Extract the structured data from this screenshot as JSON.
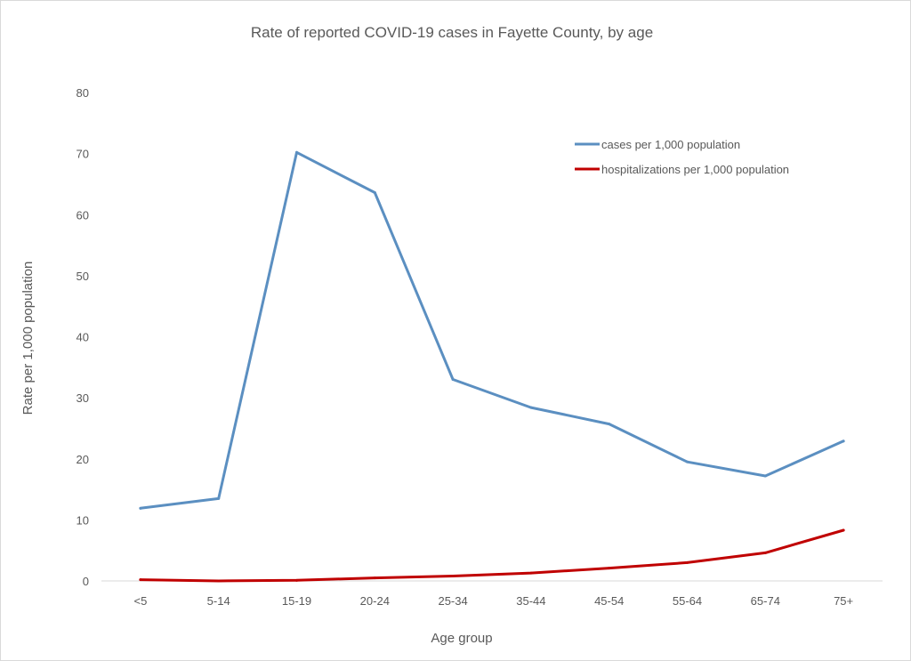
{
  "chart_data": {
    "type": "line",
    "title": "Rate of reported COVID-19 cases in Fayette County, by age",
    "xlabel": "Age group",
    "ylabel": "Rate per 1,000 population",
    "ylim": [
      0,
      80
    ],
    "yticks": [
      0,
      10,
      20,
      30,
      40,
      50,
      60,
      70,
      80
    ],
    "grid": false,
    "legend_position": "top-right",
    "categories": [
      "<5",
      "5-14",
      "15-19",
      "20-24",
      "25-34",
      "35-44",
      "45-54",
      "55-64",
      "65-74",
      "75+"
    ],
    "series": [
      {
        "name": "cases per 1,000 population",
        "color": "#5b8fc1",
        "values": [
          11.9,
          13.5,
          70.2,
          63.6,
          33.0,
          28.4,
          25.7,
          19.5,
          17.2,
          22.9
        ]
      },
      {
        "name": "hospitalizations per 1,000 population",
        "color": "#c00000",
        "values": [
          0.2,
          0.0,
          0.1,
          0.5,
          0.8,
          1.3,
          2.1,
          3.0,
          4.6,
          8.3
        ]
      }
    ]
  }
}
